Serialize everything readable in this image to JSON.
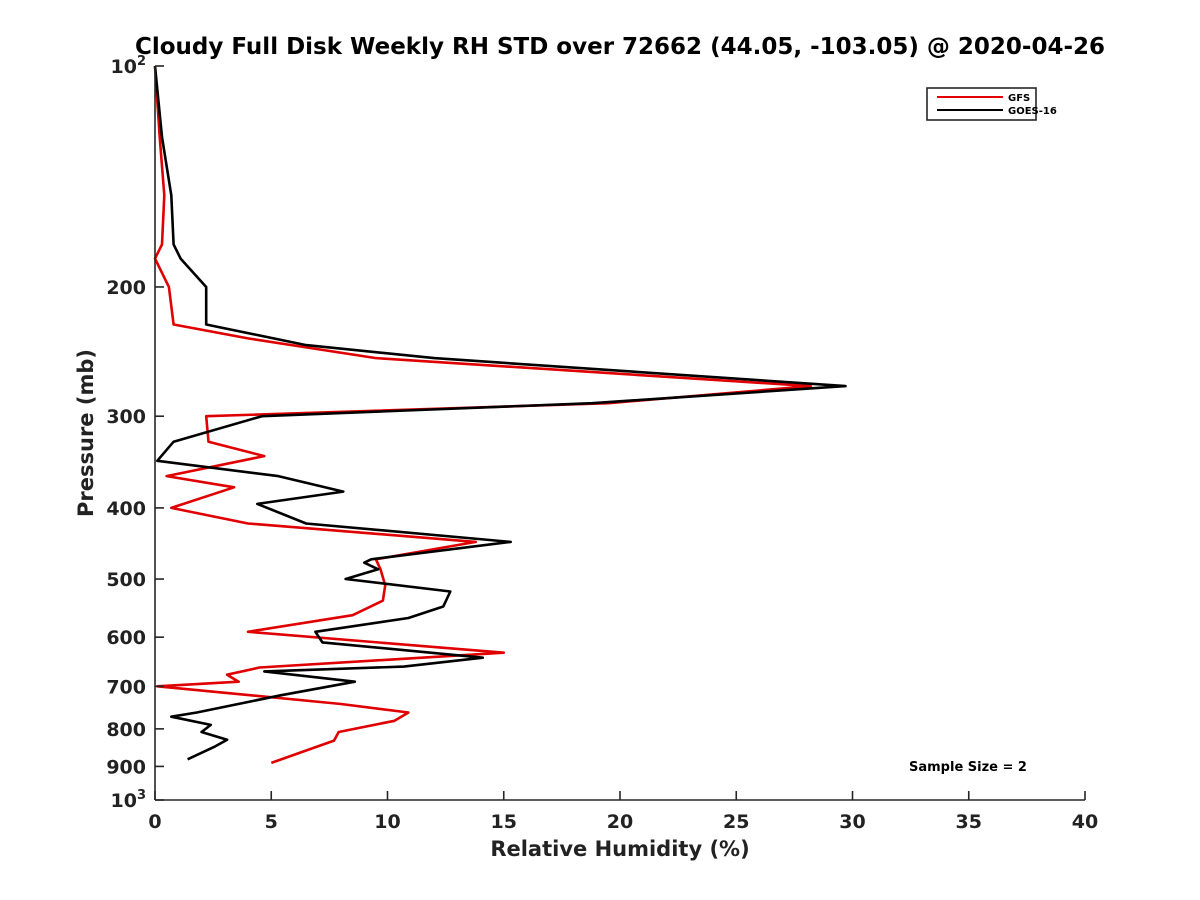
{
  "chart_data": {
    "type": "line",
    "title": "Cloudy Full Disk Weekly RH STD over 72662 (44.05, -103.05) @ 2020-04-26",
    "xlabel": "Relative Humidity (%)",
    "ylabel": "Pressure (mb)",
    "xlim": [
      0,
      40
    ],
    "ylim": [
      100,
      1000
    ],
    "y_scale": "log",
    "y_reversed": true,
    "x_ticks": [
      "0",
      "5",
      "10",
      "15",
      "20",
      "25",
      "30",
      "35",
      "40"
    ],
    "y_ticks": [
      {
        "value": 100,
        "base": "10",
        "exp": "2"
      },
      {
        "value": 200,
        "label": "200"
      },
      {
        "value": 300,
        "label": "300"
      },
      {
        "value": 400,
        "label": "400"
      },
      {
        "value": 500,
        "label": "500"
      },
      {
        "value": 600,
        "label": "600"
      },
      {
        "value": 700,
        "label": "700"
      },
      {
        "value": 800,
        "label": "800"
      },
      {
        "value": 900,
        "label": "900"
      },
      {
        "value": 1000,
        "base": "10",
        "exp": "3"
      }
    ],
    "grid": false,
    "legend_position": "top-right",
    "annotation": "Sample Size = 2",
    "series": [
      {
        "name": "GFS",
        "color": "#e00000",
        "points": [
          [
            0.0,
            100
          ],
          [
            0.2,
            125
          ],
          [
            0.4,
            150
          ],
          [
            0.3,
            175
          ],
          [
            0.0,
            183
          ],
          [
            0.6,
            200
          ],
          [
            0.8,
            225
          ],
          [
            4.0,
            235
          ],
          [
            9.5,
            250
          ],
          [
            28.2,
            273
          ],
          [
            19.5,
            288
          ],
          [
            2.2,
            300
          ],
          [
            2.3,
            325
          ],
          [
            4.7,
            340
          ],
          [
            0.5,
            362
          ],
          [
            3.4,
            375
          ],
          [
            0.7,
            400
          ],
          [
            4.0,
            420
          ],
          [
            13.8,
            445
          ],
          [
            9.5,
            470
          ],
          [
            9.7,
            485
          ],
          [
            9.9,
            510
          ],
          [
            9.8,
            535
          ],
          [
            8.5,
            560
          ],
          [
            4.0,
            590
          ],
          [
            15.0,
            630
          ],
          [
            4.5,
            660
          ],
          [
            3.1,
            675
          ],
          [
            3.6,
            690
          ],
          [
            0.1,
            700
          ],
          [
            8.0,
            740
          ],
          [
            10.9,
            760
          ],
          [
            10.3,
            780
          ],
          [
            7.9,
            808
          ],
          [
            7.7,
            830
          ],
          [
            5.0,
            890
          ]
        ]
      },
      {
        "name": "GOES-16",
        "color": "#000000",
        "points": [
          [
            0.0,
            100
          ],
          [
            0.3,
            125
          ],
          [
            0.7,
            150
          ],
          [
            0.8,
            175
          ],
          [
            1.1,
            183
          ],
          [
            2.2,
            200
          ],
          [
            2.2,
            225
          ],
          [
            6.5,
            240
          ],
          [
            12.0,
            250
          ],
          [
            29.7,
            273
          ],
          [
            18.8,
            288
          ],
          [
            4.6,
            300
          ],
          [
            0.8,
            325
          ],
          [
            0.1,
            345
          ],
          [
            5.3,
            362
          ],
          [
            8.1,
            380
          ],
          [
            4.4,
            395
          ],
          [
            6.5,
            420
          ],
          [
            15.3,
            445
          ],
          [
            9.3,
            470
          ],
          [
            9.0,
            475
          ],
          [
            9.6,
            485
          ],
          [
            8.2,
            500
          ],
          [
            12.7,
            520
          ],
          [
            12.4,
            545
          ],
          [
            10.9,
            565
          ],
          [
            6.9,
            590
          ],
          [
            7.2,
            610
          ],
          [
            14.1,
            640
          ],
          [
            10.7,
            658
          ],
          [
            4.7,
            668
          ],
          [
            8.6,
            690
          ],
          [
            5.4,
            720
          ],
          [
            1.8,
            760
          ],
          [
            0.7,
            770
          ],
          [
            2.4,
            790
          ],
          [
            2.0,
            808
          ],
          [
            3.1,
            828
          ],
          [
            2.6,
            845
          ],
          [
            1.4,
            880
          ]
        ]
      }
    ]
  }
}
